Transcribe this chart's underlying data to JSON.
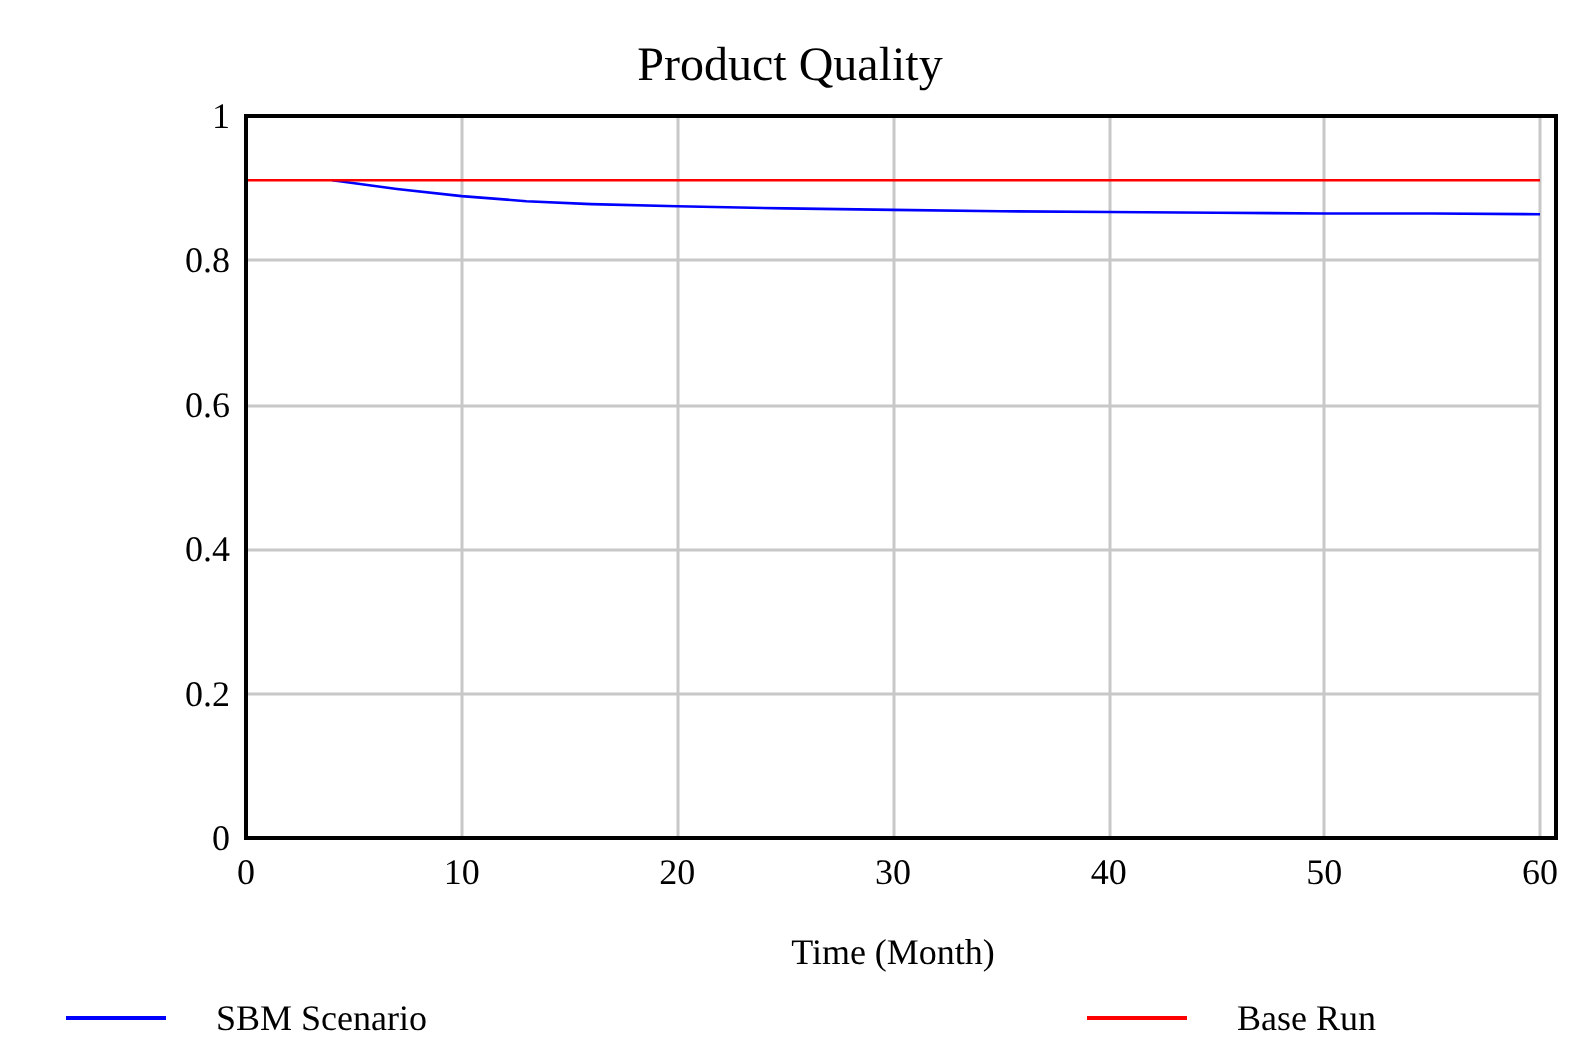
{
  "chart_data": {
    "type": "line",
    "title": "Product Quality",
    "xlabel": "Time (Month)",
    "xlim": [
      0,
      60
    ],
    "xticks": [
      0,
      10,
      20,
      30,
      40,
      50,
      60
    ],
    "ylim": [
      0,
      1
    ],
    "yticks": [
      0,
      0.2,
      0.4,
      0.6,
      0.8,
      1
    ],
    "grid": true,
    "legend": "bottom",
    "marker": "none",
    "line_style": "solid",
    "series": [
      {
        "name": "SBM Scenario",
        "color": "#0000ff",
        "x": [
          4,
          7,
          10,
          13,
          16,
          20,
          25,
          30,
          35,
          40,
          45,
          50,
          55,
          60
        ],
        "values": [
          0.911,
          0.899,
          0.889,
          0.882,
          0.878,
          0.875,
          0.872,
          0.87,
          0.868,
          0.867,
          0.866,
          0.865,
          0.865,
          0.864
        ]
      },
      {
        "name": "Base Run",
        "color": "#ff0000",
        "x": [
          0,
          60
        ],
        "values": [
          0.911,
          0.911
        ]
      }
    ]
  }
}
